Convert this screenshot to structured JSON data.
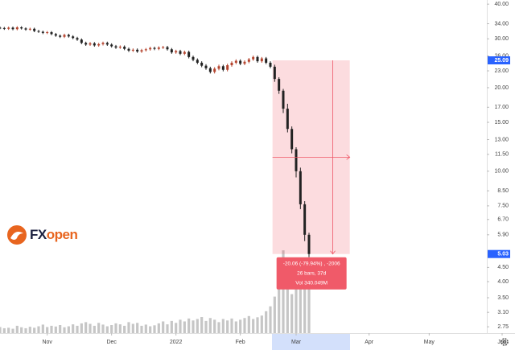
{
  "chart_data": {
    "type": "candlestick",
    "log_scale": true,
    "grid": false,
    "up_color": "#b5452f",
    "down_color": "#222222",
    "volume_color": "#c6c6c6",
    "xlim": [
      0,
      120
    ],
    "xticks": [
      {
        "value": 11,
        "label": "Nov"
      },
      {
        "value": 26,
        "label": "Dec"
      },
      {
        "value": 41,
        "label": "2022"
      },
      {
        "value": 56,
        "label": "Feb"
      },
      {
        "value": 69,
        "label": "Mar"
      },
      {
        "value": 86,
        "label": "Apr"
      },
      {
        "value": 100,
        "label": "May"
      },
      {
        "value": 117,
        "label": "Jun"
      }
    ],
    "ylim": [
      2.68,
      41.4
    ],
    "yticks": [
      {
        "value": 40,
        "label": "40.00"
      },
      {
        "value": 34,
        "label": "34.00"
      },
      {
        "value": 30,
        "label": "30.00"
      },
      {
        "value": 26,
        "label": "26.00"
      },
      {
        "value": 23,
        "label": "23.00"
      },
      {
        "value": 20,
        "label": "20.00"
      },
      {
        "value": 17,
        "label": "17.00"
      },
      {
        "value": 15,
        "label": "15.00"
      },
      {
        "value": 13,
        "label": "13.00"
      },
      {
        "value": 11.5,
        "label": "11.50"
      },
      {
        "value": 10,
        "label": "10.00"
      },
      {
        "value": 8.5,
        "label": "8.50"
      },
      {
        "value": 7.5,
        "label": "7.50"
      },
      {
        "value": 6.7,
        "label": "6.70"
      },
      {
        "value": 5.9,
        "label": "5.90"
      },
      {
        "value": 4.5,
        "label": "4.50"
      },
      {
        "value": 4,
        "label": "4.00"
      },
      {
        "value": 3.5,
        "label": "3.50"
      },
      {
        "value": 3.1,
        "label": "3.10"
      },
      {
        "value": 2.75,
        "label": "2.75"
      }
    ],
    "volume_lim": [
      0,
      380
    ],
    "open": [
      32.9,
      32.8,
      32.6,
      32.9,
      32.5,
      33.0,
      32.7,
      32.4,
      32.6,
      32.0,
      31.8,
      31.5,
      31.7,
      31.2,
      30.8,
      30.5,
      31.0,
      30.6,
      30.2,
      29.8,
      29.0,
      28.6,
      28.9,
      28.4,
      28.7,
      29.0,
      28.6,
      28.2,
      27.9,
      28.1,
      27.6,
      27.2,
      27.4,
      27.0,
      27.3,
      27.5,
      27.8,
      27.6,
      27.9,
      28.0,
      27.5,
      26.8,
      27.1,
      26.5,
      26.9,
      25.8,
      25.2,
      24.6,
      24.0,
      23.5,
      22.8,
      23.4,
      23.9,
      23.2,
      24.1,
      24.6,
      25.0,
      24.4,
      24.8,
      25.3,
      25.8,
      24.9,
      25.5,
      24.6,
      23.8,
      21.5,
      19.5,
      16.8,
      14.2,
      12.0,
      10.0,
      7.6,
      5.9
    ],
    "high": [
      33.2,
      33.1,
      33.2,
      33.2,
      33.3,
      33.3,
      33.0,
      32.9,
      32.9,
      32.3,
      32.1,
      32.0,
      32.0,
      31.5,
      31.1,
      31.3,
      31.3,
      30.9,
      30.5,
      30.1,
      29.3,
      29.2,
      29.2,
      29.0,
      29.3,
      29.3,
      28.9,
      28.5,
      28.4,
      28.4,
      27.9,
      27.7,
      27.7,
      27.6,
      27.8,
      28.1,
      28.1,
      28.2,
      28.3,
      28.3,
      27.8,
      27.4,
      27.4,
      27.2,
      27.2,
      26.1,
      25.5,
      24.9,
      24.3,
      23.8,
      23.7,
      24.2,
      24.2,
      24.4,
      24.9,
      25.3,
      25.3,
      25.1,
      25.6,
      26.1,
      26.1,
      25.8,
      25.8,
      24.9,
      24.2,
      21.8,
      19.8,
      17.5,
      14.5,
      12.2,
      10.3,
      7.8,
      6.0
    ],
    "low": [
      32.5,
      32.3,
      32.3,
      32.2,
      32.2,
      32.4,
      32.1,
      32.1,
      31.7,
      31.5,
      31.2,
      31.2,
      30.9,
      30.5,
      30.2,
      30.2,
      30.3,
      29.9,
      29.5,
      28.7,
      28.3,
      28.3,
      28.1,
      28.1,
      28.4,
      28.3,
      27.9,
      27.6,
      27.6,
      27.3,
      26.9,
      26.9,
      26.7,
      26.7,
      27.0,
      27.2,
      27.3,
      27.3,
      27.6,
      27.2,
      26.5,
      26.5,
      26.2,
      26.2,
      25.5,
      24.9,
      24.3,
      23.7,
      23.2,
      22.5,
      22.5,
      23.1,
      22.9,
      22.9,
      23.8,
      24.3,
      24.1,
      24.1,
      24.5,
      25.0,
      24.6,
      24.6,
      24.3,
      23.5,
      21.0,
      19.0,
      16.2,
      13.8,
      11.6,
      9.5,
      7.3,
      5.6,
      4.9
    ],
    "close": [
      32.8,
      32.6,
      32.9,
      32.5,
      33.0,
      32.7,
      32.4,
      32.6,
      32.0,
      31.8,
      31.5,
      31.7,
      31.2,
      30.8,
      30.5,
      31.0,
      30.6,
      30.2,
      29.8,
      29.0,
      28.6,
      28.9,
      28.4,
      28.7,
      29.0,
      28.6,
      28.2,
      27.9,
      28.1,
      27.6,
      27.2,
      27.4,
      27.0,
      27.3,
      27.5,
      27.8,
      27.6,
      27.9,
      28.0,
      27.5,
      26.8,
      27.1,
      26.5,
      26.9,
      25.8,
      25.2,
      24.6,
      24.0,
      23.5,
      22.8,
      23.4,
      23.9,
      23.2,
      24.1,
      24.6,
      25.0,
      24.4,
      24.8,
      25.3,
      25.8,
      24.9,
      25.5,
      24.6,
      23.8,
      21.5,
      19.5,
      16.8,
      14.2,
      12.0,
      10.0,
      7.6,
      5.9,
      5.03
    ],
    "volume": [
      25,
      20,
      22,
      18,
      30,
      24,
      20,
      26,
      22,
      28,
      35,
      25,
      30,
      27,
      33,
      24,
      28,
      36,
      30,
      40,
      45,
      38,
      30,
      42,
      35,
      28,
      33,
      40,
      36,
      30,
      45,
      38,
      42,
      30,
      35,
      28,
      32,
      40,
      48,
      36,
      50,
      42,
      55,
      48,
      60,
      52,
      58,
      66,
      50,
      62,
      55,
      45,
      58,
      52,
      60,
      48,
      55,
      62,
      70,
      58,
      65,
      72,
      90,
      110,
      150,
      180,
      340,
      200,
      160,
      260,
      230,
      300,
      210
    ],
    "measure": {
      "top": 25.09,
      "bottom": 5.03,
      "x": [
        63.5,
        81.5
      ],
      "lines": [
        "-20.06 (-79.94%) , -2006",
        "26 bars, 37d",
        "Vol 340.049M"
      ]
    },
    "logo": [
      "FX",
      "open"
    ]
  }
}
